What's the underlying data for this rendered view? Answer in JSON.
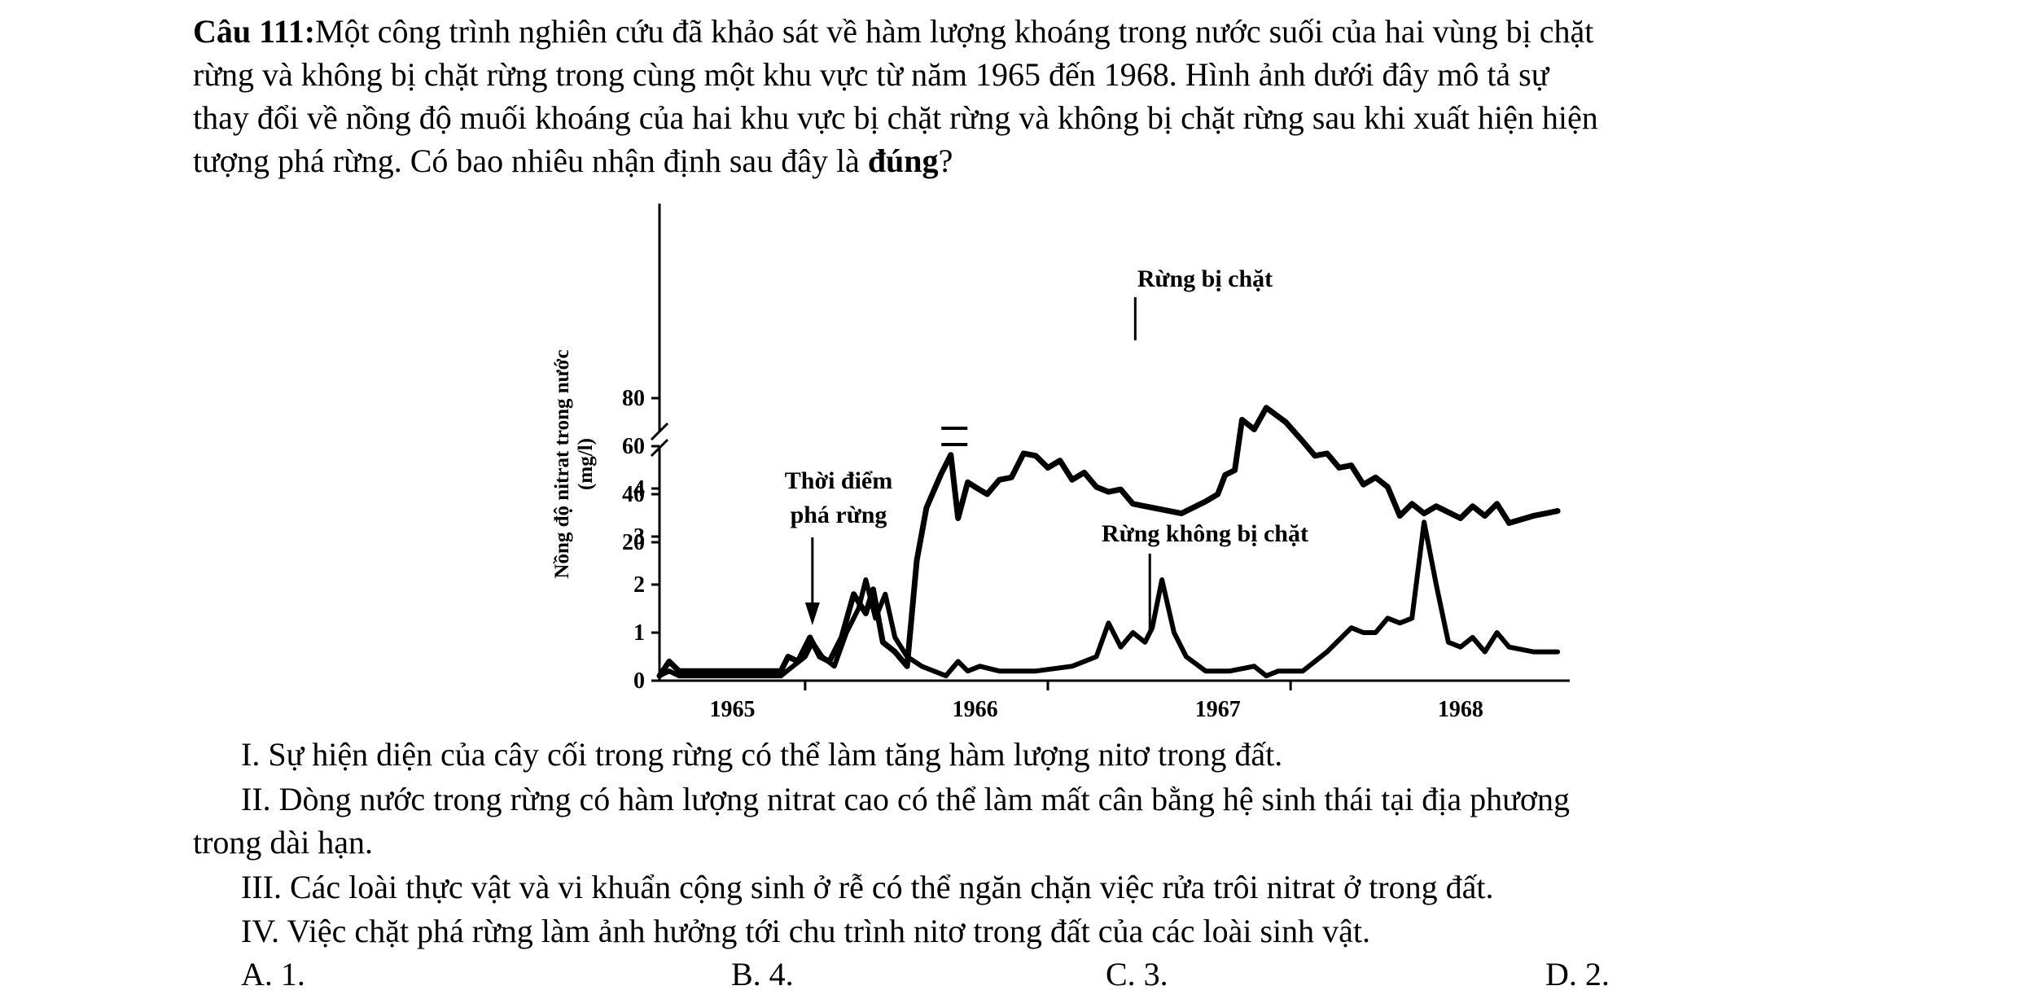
{
  "question": {
    "number": "Câu 111:",
    "lines": [
      "Một công trình nghiên cứu đã khảo sát về hàm lượng khoáng trong nước suối của hai vùng bị chặt",
      "rừng và không bị chặt rừng trong cùng một khu vực từ năm 1965 đến 1968. Hình ảnh dưới đây mô tả sự",
      "thay đổi về nồng độ muối khoáng của hai khu vực bị chặt rừng và không bị chặt rừng sau khi xuất hiện hiện",
      "tượng phá rừng. Có bao nhiêu nhận định sau đây là "
    ],
    "emphasis": "đúng",
    "end": "?"
  },
  "statements": {
    "s1": "I. Sự hiện diện của cây cối trong rừng có thể làm tăng hàm lượng nitơ trong đất.",
    "s2a": "II. Dòng nước trong rừng có hàm lượng nitrat cao có thể làm mất cân bằng hệ sinh thái tại địa phương",
    "s2b": "trong dài hạn.",
    "s3": "III. Các loài thực vật và vi khuẩn cộng sinh ở rễ có thể ngăn chặn việc rửa trôi nitrat ở trong đất.",
    "s4": "IV. Việc chặt phá rừng làm ảnh hưởng tới chu trình nitơ trong đất của các loài sinh vật."
  },
  "options": {
    "a": "A. 1.",
    "b": "B. 4.",
    "c": "C. 3.",
    "d": "D. 2."
  },
  "chart_data": {
    "type": "line",
    "ylabel_line1": "Nồng độ nitrat trong nước",
    "ylabel_line2": "(mg/l)",
    "yticks_upper": [
      "80",
      "60",
      "40",
      "20"
    ],
    "yticks_lower": [
      "4",
      "3",
      "2",
      "1",
      "0"
    ],
    "xticks": [
      "1965",
      "1966",
      "1967",
      "1968"
    ],
    "annotations": {
      "deforestation_1": "Thời điểm",
      "deforestation_2": "phá rừng",
      "cut": "Rừng bị chặt",
      "uncut": "Rừng không bị chặt"
    },
    "axis_break": "y between 4 and 20",
    "x_range": [
      1964.7,
      1968.45
    ],
    "series": [
      {
        "name": "Rừng bị chặt",
        "points": [
          [
            1964.7,
            0.1
          ],
          [
            1964.74,
            0.4
          ],
          [
            1964.78,
            0.2
          ],
          [
            1964.9,
            0.2
          ],
          [
            1965.0,
            0.2
          ],
          [
            1965.1,
            0.2
          ],
          [
            1965.2,
            0.2
          ],
          [
            1965.23,
            0.5
          ],
          [
            1965.27,
            0.4
          ],
          [
            1965.32,
            0.9
          ],
          [
            1965.36,
            0.5
          ],
          [
            1965.4,
            0.4
          ],
          [
            1965.45,
            0.9
          ],
          [
            1965.5,
            1.8
          ],
          [
            1965.55,
            1.4
          ],
          [
            1965.58,
            1.9
          ],
          [
            1965.62,
            0.8
          ],
          [
            1965.67,
            0.6
          ],
          [
            1965.72,
            0.3
          ],
          [
            1965.76,
            2.5
          ],
          [
            1965.8,
            3.6
          ],
          [
            1965.86,
            4.3
          ],
          [
            1965.9,
            4.7
          ],
          [
            1965.93,
            30
          ],
          [
            1965.97,
            45
          ],
          [
            1966.0,
            43
          ],
          [
            1966.05,
            40
          ],
          [
            1966.1,
            46
          ],
          [
            1966.15,
            47
          ],
          [
            1966.2,
            57
          ],
          [
            1966.25,
            56
          ],
          [
            1966.3,
            51
          ],
          [
            1966.35,
            54
          ],
          [
            1966.4,
            46
          ],
          [
            1966.45,
            49
          ],
          [
            1966.5,
            43
          ],
          [
            1966.55,
            41
          ],
          [
            1966.6,
            42
          ],
          [
            1966.65,
            36
          ],
          [
            1966.75,
            34
          ],
          [
            1966.85,
            32
          ],
          [
            1966.95,
            37
          ],
          [
            1967.0,
            40
          ],
          [
            1967.03,
            48
          ],
          [
            1967.07,
            50
          ],
          [
            1967.1,
            71
          ],
          [
            1967.15,
            67
          ],
          [
            1967.2,
            76
          ],
          [
            1967.28,
            70
          ],
          [
            1967.35,
            62
          ],
          [
            1967.4,
            56
          ],
          [
            1967.45,
            57
          ],
          [
            1967.5,
            51
          ],
          [
            1967.55,
            52
          ],
          [
            1967.6,
            44
          ],
          [
            1967.65,
            47
          ],
          [
            1967.7,
            43
          ],
          [
            1967.75,
            31
          ],
          [
            1967.8,
            36
          ],
          [
            1967.85,
            32
          ],
          [
            1967.9,
            35
          ],
          [
            1968.0,
            30
          ],
          [
            1968.05,
            35
          ],
          [
            1968.1,
            31
          ],
          [
            1968.15,
            36
          ],
          [
            1968.2,
            28
          ],
          [
            1968.3,
            31
          ],
          [
            1968.4,
            33
          ]
        ]
      },
      {
        "name": "Rừng không bị chặt",
        "points": [
          [
            1964.7,
            0.1
          ],
          [
            1964.74,
            0.2
          ],
          [
            1964.78,
            0.1
          ],
          [
            1964.9,
            0.1
          ],
          [
            1965.0,
            0.1
          ],
          [
            1965.1,
            0.1
          ],
          [
            1965.2,
            0.1
          ],
          [
            1965.25,
            0.3
          ],
          [
            1965.3,
            0.5
          ],
          [
            1965.33,
            0.8
          ],
          [
            1965.37,
            0.5
          ],
          [
            1965.42,
            0.3
          ],
          [
            1965.47,
            1.0
          ],
          [
            1965.52,
            1.5
          ],
          [
            1965.55,
            2.1
          ],
          [
            1965.59,
            1.3
          ],
          [
            1965.63,
            1.8
          ],
          [
            1965.67,
            0.9
          ],
          [
            1965.72,
            0.5
          ],
          [
            1965.78,
            0.3
          ],
          [
            1965.83,
            0.2
          ],
          [
            1965.88,
            0.1
          ],
          [
            1965.93,
            0.4
          ],
          [
            1965.97,
            0.2
          ],
          [
            1966.02,
            0.3
          ],
          [
            1966.1,
            0.2
          ],
          [
            1966.25,
            0.2
          ],
          [
            1966.4,
            0.3
          ],
          [
            1966.5,
            0.5
          ],
          [
            1966.55,
            1.2
          ],
          [
            1966.6,
            0.7
          ],
          [
            1966.65,
            1.0
          ],
          [
            1966.7,
            0.8
          ],
          [
            1966.73,
            1.1
          ],
          [
            1966.77,
            2.1
          ],
          [
            1966.82,
            1.0
          ],
          [
            1966.87,
            0.5
          ],
          [
            1966.95,
            0.2
          ],
          [
            1967.05,
            0.2
          ],
          [
            1967.15,
            0.3
          ],
          [
            1967.2,
            0.1
          ],
          [
            1967.25,
            0.2
          ],
          [
            1967.35,
            0.2
          ],
          [
            1967.45,
            0.6
          ],
          [
            1967.55,
            1.1
          ],
          [
            1967.6,
            1.0
          ],
          [
            1967.65,
            1.0
          ],
          [
            1967.7,
            1.3
          ],
          [
            1967.75,
            1.2
          ],
          [
            1967.8,
            1.3
          ],
          [
            1967.85,
            3.3
          ],
          [
            1967.9,
            2.0
          ],
          [
            1967.95,
            0.8
          ],
          [
            1968.0,
            0.7
          ],
          [
            1968.05,
            0.9
          ],
          [
            1968.1,
            0.6
          ],
          [
            1968.15,
            1.0
          ],
          [
            1968.2,
            0.7
          ],
          [
            1968.3,
            0.6
          ],
          [
            1968.4,
            0.6
          ]
        ]
      }
    ]
  }
}
